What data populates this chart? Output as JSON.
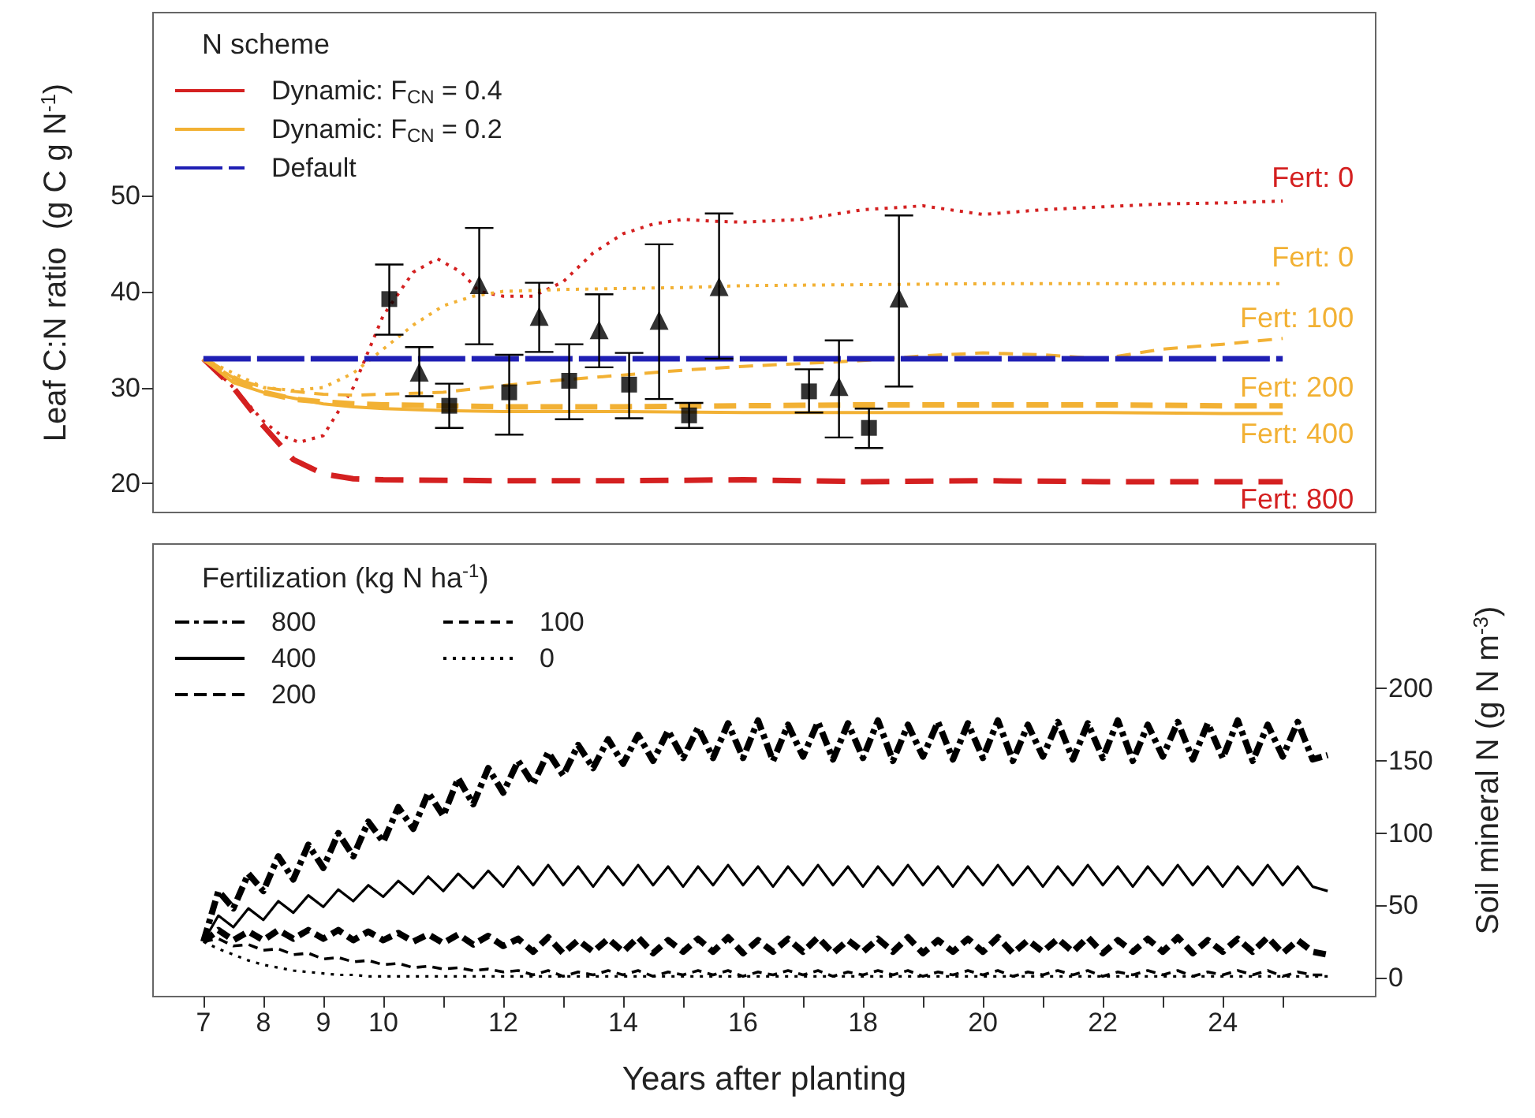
{
  "chart_data": [
    {
      "type": "line",
      "ylabel": "Leaf C:N ratio  (g C g N$^{-1}$)",
      "legend_title": "N scheme",
      "legend": "top left",
      "grid": false,
      "marker": "none",
      "tick_labels": "y",
      "xlim": [
        6.16,
        26.55
      ],
      "ylim": [
        17,
        69
      ],
      "yticks": [
        20,
        30,
        40,
        50
      ],
      "annotations": [
        "Fert: 0",
        "Fert: 0",
        "Fert: 100",
        "Fert: 200",
        "Fert: 400",
        "Fert: 800"
      ],
      "series": [
        {
          "color": "#d42020",
          "line_style": "dotted",
          "x": [
            7,
            7.5,
            8,
            8.3,
            8.6,
            9,
            9.5,
            10,
            10.5,
            10.9,
            11.3,
            11.6,
            12,
            12.5,
            13,
            13.5,
            14,
            14.5,
            15,
            15.5,
            16,
            17,
            18,
            19,
            20,
            21,
            22,
            23,
            24,
            25
          ],
          "values": [
            33,
            30,
            26.5,
            25,
            24.3,
            25,
            30,
            37.5,
            42,
            43.4,
            42,
            40,
            39.5,
            39.5,
            41,
            44,
            46,
            47,
            47.5,
            47.3,
            47.2,
            47.5,
            48.5,
            48.9,
            48,
            48.5,
            48.8,
            49.1,
            49.2,
            49.4
          ]
        },
        {
          "color": "#d42020",
          "line_style": "dashed",
          "x": [
            7,
            7.5,
            8,
            8.5,
            9,
            9.5,
            10,
            12,
            14,
            16,
            18,
            20,
            22,
            24,
            25
          ],
          "values": [
            33,
            30,
            26,
            22.5,
            21,
            20.5,
            20.4,
            20.3,
            20.3,
            20.4,
            20.2,
            20.3,
            20.2,
            20.2,
            20.2
          ]
        },
        {
          "color": "#f2b134",
          "line_style": "dotted",
          "x": [
            7,
            7.5,
            8,
            8.5,
            9,
            9.5,
            10,
            10.5,
            11,
            11.5,
            12,
            13,
            14,
            15,
            16,
            18,
            20,
            22,
            24,
            25
          ],
          "values": [
            33,
            31.5,
            30,
            29.7,
            30,
            31.5,
            34,
            36.5,
            38.5,
            39.5,
            40,
            40.2,
            40.3,
            40.4,
            40.6,
            40.7,
            40.8,
            40.8,
            40.8,
            40.8
          ]
        },
        {
          "color": "#f2b134",
          "line_style": "dashed",
          "x": [
            7,
            7.5,
            8,
            8.5,
            9,
            9.5,
            10,
            11,
            12,
            13,
            14,
            15,
            16,
            17,
            18,
            19,
            20,
            21,
            22,
            23,
            24,
            25
          ],
          "values": [
            33,
            31,
            30,
            29.6,
            29.3,
            29.2,
            29.3,
            29.5,
            30.2,
            30.8,
            31.3,
            31.8,
            32.2,
            32.5,
            32.8,
            33.3,
            33.6,
            33.4,
            33,
            34,
            34.5,
            35.1
          ]
        },
        {
          "color": "#f2b134",
          "line_style": "dashed",
          "x": [
            7,
            7.5,
            8,
            8.5,
            9,
            9.5,
            10,
            11,
            12,
            14,
            16,
            18,
            20,
            22,
            24,
            25
          ],
          "values": [
            33,
            31,
            29.5,
            28.8,
            28.5,
            28.3,
            28.2,
            28.1,
            28,
            28,
            28.1,
            28.2,
            28.2,
            28.2,
            28.1,
            28.1
          ]
        },
        {
          "color": "#f2b134",
          "line_style": "solid",
          "x": [
            7,
            7.5,
            8,
            8.5,
            9,
            9.5,
            10,
            11,
            12,
            14,
            16,
            18,
            20,
            22,
            24,
            25
          ],
          "values": [
            33,
            30.5,
            29.5,
            28.9,
            28.3,
            28,
            27.8,
            27.6,
            27.5,
            27.5,
            27.4,
            27.4,
            27.4,
            27.4,
            27.3,
            27.3
          ]
        },
        {
          "name": "Dynamic: F$_{CN}$ = 0.4",
          "color": "#d42020",
          "line_style": "solid"
        },
        {
          "name": "Dynamic: F$_{CN}$ = 0.2",
          "color": "#f2b134",
          "line_style": "solid"
        },
        {
          "name": "Default",
          "color": "#1f1fb4",
          "line_style": "dashed",
          "x": [
            7,
            25
          ],
          "values": [
            33,
            33
          ]
        },
        {
          "type": "scatter",
          "marker": "square",
          "color": "#000000",
          "x": [
            10.1,
            11.1,
            12.1,
            13.1,
            14.1,
            15.1,
            17.1,
            18.1
          ],
          "values": [
            39.2,
            28.1,
            29.5,
            30.7,
            30.3,
            27.1,
            29.6,
            25.8
          ],
          "errors": [
            [
              35.5,
              42.8
            ],
            [
              25.8,
              30.4
            ],
            [
              25.1,
              33.4
            ],
            [
              26.7,
              34.5
            ],
            [
              26.8,
              33.6
            ],
            [
              25.8,
              28.4
            ],
            [
              27.4,
              31.9
            ],
            [
              23.7,
              27.8
            ]
          ]
        },
        {
          "type": "scatter",
          "marker": "triangle",
          "color": "#000000",
          "x": [
            10.6,
            11.6,
            12.6,
            13.6,
            14.6,
            15.6,
            17.6,
            18.6
          ],
          "values": [
            31.6,
            40.7,
            37.4,
            36.0,
            37.0,
            40.5,
            30.1,
            39.3
          ],
          "errors": [
            [
              29.1,
              34.2
            ],
            [
              34.5,
              46.6
            ],
            [
              33.7,
              40.9
            ],
            [
              32.1,
              39.7
            ],
            [
              28.8,
              44.9
            ],
            [
              33.0,
              48.1
            ],
            [
              24.8,
              34.9
            ],
            [
              30.1,
              47.9
            ]
          ]
        }
      ]
    },
    {
      "type": "line",
      "xlabel": "Years after planting",
      "y2label": "Soil mineral N (g N m$^{-3}$)",
      "legend_title": "Fertilization (kg N ha$^{-1}$)",
      "legend": "top left",
      "grid": false,
      "marker": "none",
      "xlim": [
        6.16,
        26.55
      ],
      "xticks": [
        7,
        8,
        9,
        10,
        {
          "value": 11,
          "label": null
        },
        12,
        {
          "value": 13,
          "label": null
        },
        14,
        {
          "value": 15,
          "label": null
        },
        16,
        {
          "value": 17,
          "label": null
        },
        18,
        {
          "value": 19,
          "label": null
        },
        20,
        {
          "value": 21,
          "label": null
        },
        22,
        {
          "value": 23,
          "label": null
        },
        24,
        {
          "value": 25,
          "label": null
        }
      ],
      "y2lim": [
        -13,
        300
      ],
      "y2ticks": [
        0,
        50,
        100,
        150,
        200
      ],
      "x": [
        7,
        7.25,
        7.5,
        7.75,
        8,
        8.25,
        8.5,
        8.75,
        9,
        9.25,
        9.5,
        9.75,
        10,
        10.25,
        10.5,
        10.75,
        11,
        11.25,
        11.5,
        11.75,
        12,
        12.25,
        12.5,
        12.75,
        13,
        13.25,
        13.5,
        13.75,
        14,
        14.25,
        14.5,
        14.75,
        15,
        15.25,
        15.5,
        15.75,
        16,
        16.25,
        16.5,
        16.75,
        17,
        17.25,
        17.5,
        17.75,
        18,
        18.25,
        18.5,
        18.75,
        19,
        19.25,
        19.5,
        19.75,
        20,
        20.25,
        20.5,
        20.75,
        21,
        21.25,
        21.5,
        21.75,
        22,
        22.25,
        22.5,
        22.75,
        23,
        23.25,
        23.5,
        23.75,
        24,
        24.25,
        24.5,
        24.75,
        25,
        25.25,
        25.5,
        25.75
      ],
      "series": [
        {
          "name": "800",
          "color": "#000000",
          "line_style": "dashed",
          "axis": "y2",
          "values": [
            25,
            60,
            48,
            72,
            60,
            84,
            68,
            92,
            76,
            100,
            84,
            108,
            94,
            118,
            103,
            128,
            112,
            138,
            120,
            145,
            128,
            150,
            134,
            156,
            140,
            161,
            145,
            165,
            148,
            168,
            150,
            171,
            152,
            173,
            152,
            176,
            152,
            178,
            150,
            175,
            153,
            177,
            151,
            176,
            152,
            178,
            150,
            175,
            153,
            177,
            151,
            176,
            152,
            178,
            150,
            175,
            153,
            177,
            151,
            176,
            152,
            178,
            150,
            175,
            153,
            177,
            151,
            176,
            152,
            178,
            150,
            175,
            153,
            177,
            151,
            154
          ]
        },
        {
          "name": "400",
          "color": "#000000",
          "line_style": "solid",
          "axis": "y2",
          "values": [
            25,
            43,
            35,
            48,
            40,
            53,
            45,
            57,
            49,
            61,
            53,
            64,
            56,
            67,
            58,
            70,
            60,
            72,
            62,
            74,
            63,
            77,
            64,
            78,
            64,
            77,
            63,
            77,
            64,
            78,
            64,
            77,
            63,
            77,
            64,
            78,
            64,
            77,
            63,
            77,
            64,
            78,
            64,
            77,
            63,
            77,
            64,
            78,
            64,
            77,
            63,
            77,
            64,
            78,
            64,
            77,
            63,
            77,
            64,
            78,
            64,
            77,
            63,
            77,
            64,
            78,
            64,
            77,
            63,
            77,
            64,
            78,
            64,
            77,
            63,
            60
          ]
        },
        {
          "name": "200",
          "color": "#000000",
          "line_style": "dashed",
          "axis": "y2",
          "values": [
            25,
            33,
            26,
            32,
            26,
            33,
            27,
            33,
            27,
            33,
            26,
            32,
            26,
            31,
            25,
            30,
            24,
            30,
            23,
            29,
            22,
            27,
            18,
            28,
            17,
            26,
            18,
            27,
            18,
            28,
            17,
            26,
            18,
            27,
            18,
            28,
            17,
            26,
            18,
            27,
            18,
            28,
            17,
            26,
            18,
            27,
            18,
            28,
            17,
            26,
            18,
            27,
            18,
            28,
            17,
            26,
            18,
            27,
            18,
            28,
            17,
            26,
            18,
            27,
            18,
            28,
            17,
            26,
            18,
            27,
            18,
            28,
            17,
            26,
            18,
            16
          ]
        },
        {
          "name": "100",
          "color": "#000000",
          "line_style": "dashed",
          "axis": "y2",
          "values": [
            25,
            27,
            22,
            23,
            19,
            20,
            16,
            17,
            13,
            14,
            11,
            12,
            9,
            10,
            7,
            8,
            6,
            7,
            5,
            6,
            4,
            5,
            2,
            5,
            1,
            4,
            2,
            5,
            2,
            5,
            1,
            4,
            2,
            5,
            2,
            5,
            1,
            4,
            2,
            5,
            2,
            5,
            1,
            4,
            2,
            5,
            2,
            5,
            1,
            4,
            2,
            5,
            2,
            5,
            1,
            4,
            2,
            5,
            2,
            5,
            1,
            4,
            2,
            5,
            2,
            5,
            1,
            4,
            2,
            5,
            2,
            5,
            1,
            4,
            2,
            2
          ]
        },
        {
          "name": "0",
          "color": "#000000",
          "line_style": "dotted",
          "axis": "y2",
          "values": [
            25,
            20,
            16,
            12,
            9,
            7,
            5,
            4,
            3,
            2,
            2,
            1,
            1,
            1,
            1,
            1,
            1,
            1,
            1,
            1,
            1,
            1,
            1,
            1,
            1,
            1,
            1,
            1,
            1,
            1,
            1,
            1,
            1,
            1,
            1,
            1,
            1,
            1,
            1,
            1,
            1,
            1,
            1,
            1,
            1,
            1,
            1,
            1,
            1,
            1,
            1,
            1,
            1,
            1,
            1,
            1,
            1,
            1,
            1,
            1,
            1,
            1,
            1,
            1,
            1,
            1,
            1,
            1,
            1,
            1,
            1,
            1,
            1,
            1,
            1,
            1
          ]
        }
      ]
    }
  ]
}
